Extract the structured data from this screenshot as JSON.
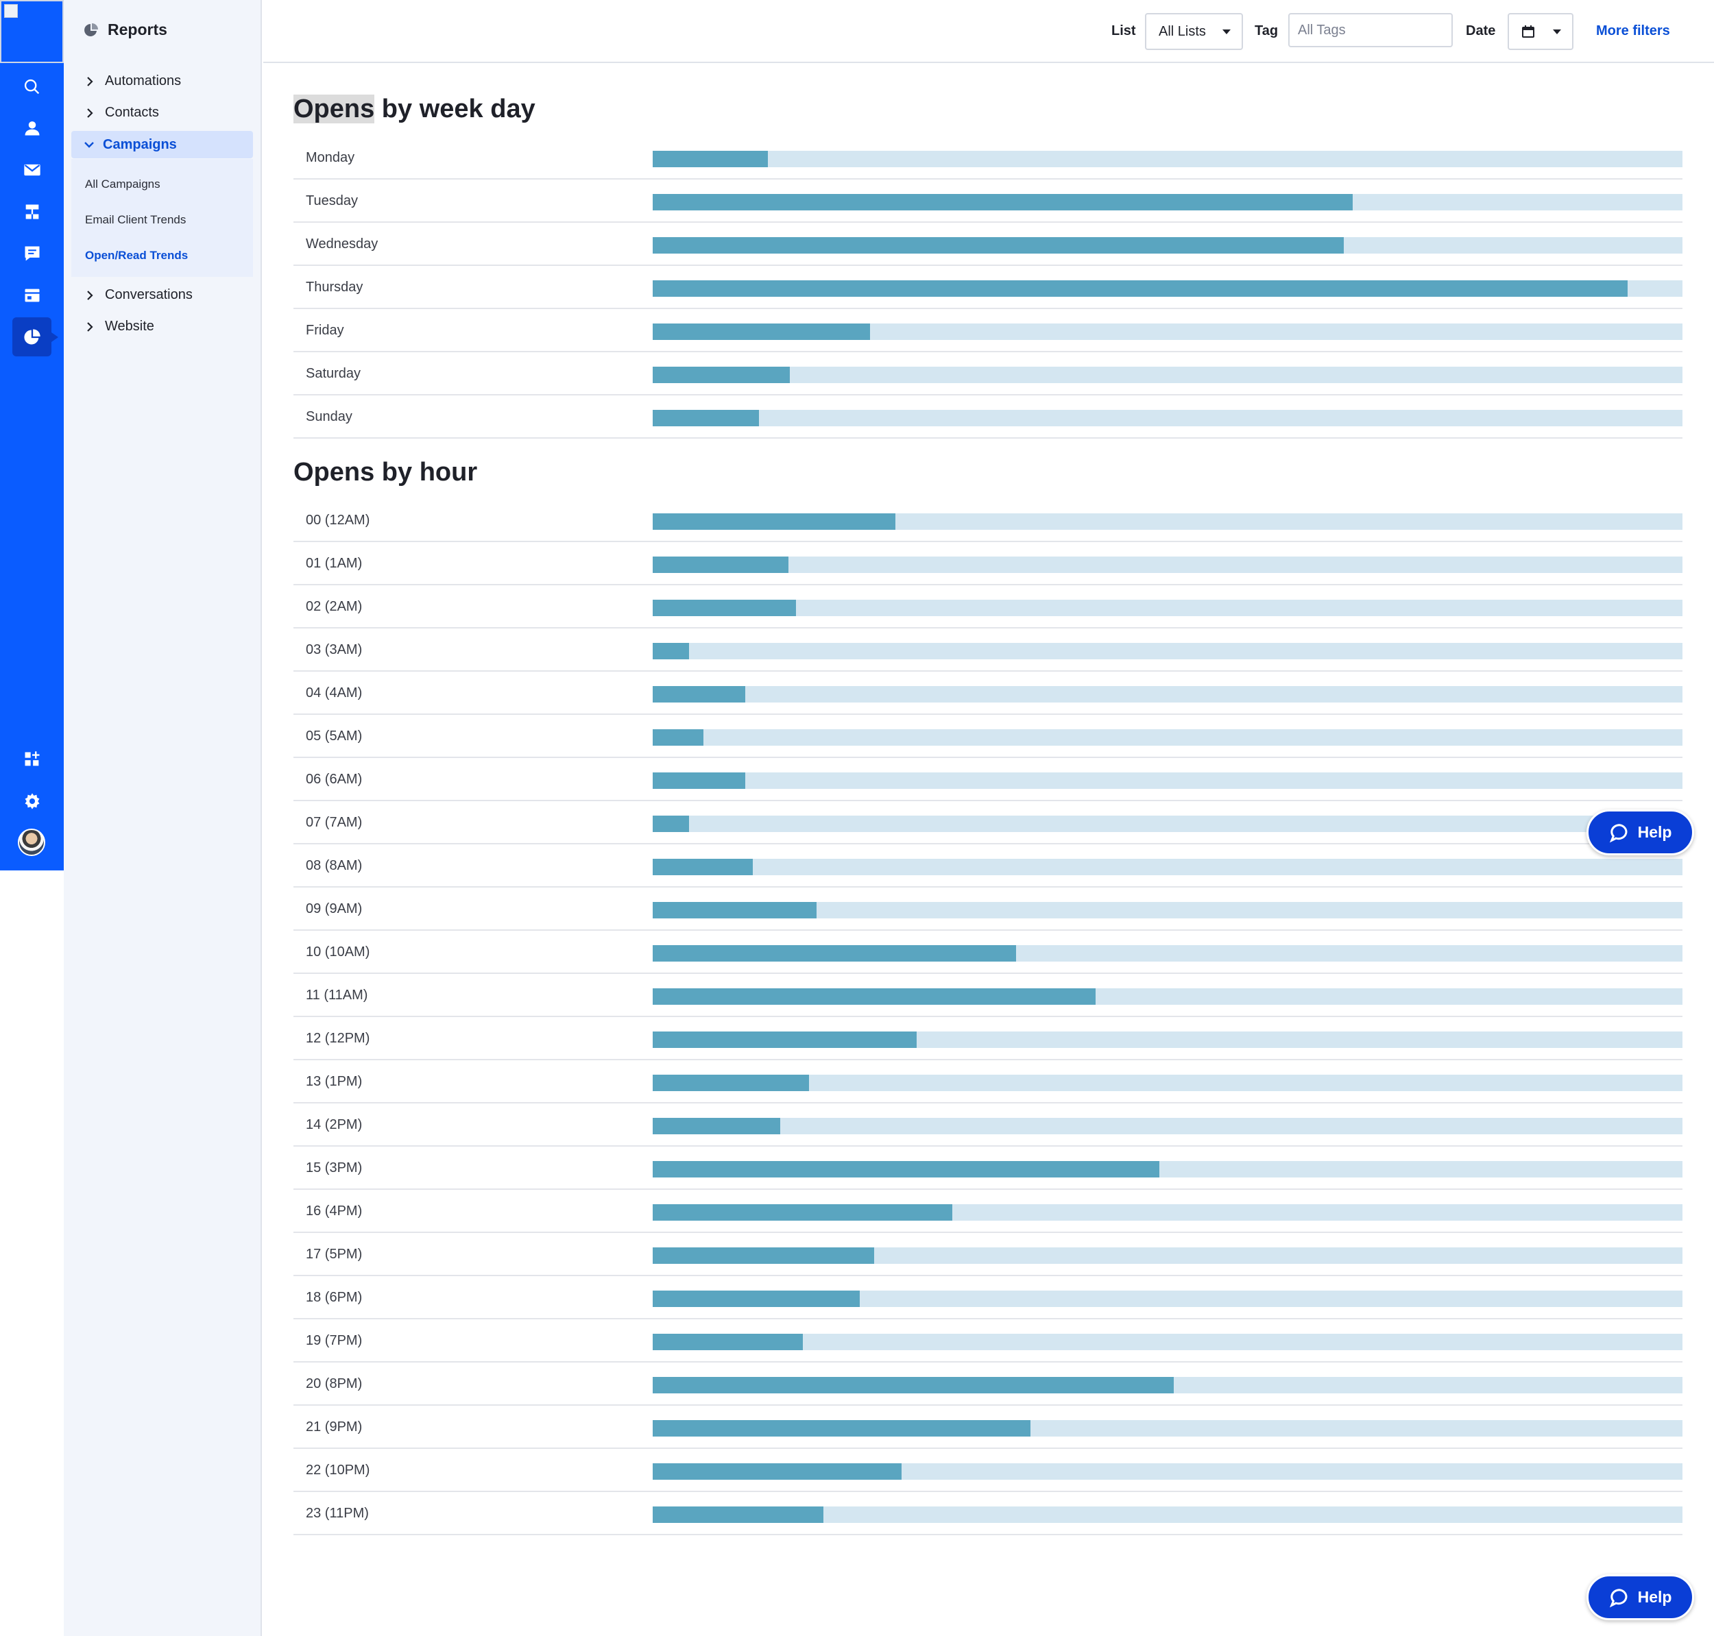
{
  "sidebar": {
    "title": "Reports",
    "sections": [
      {
        "label": "Automations"
      },
      {
        "label": "Contacts"
      },
      {
        "label": "Campaigns"
      },
      {
        "label": "Conversations"
      },
      {
        "label": "Website"
      }
    ],
    "campaign_subitems": [
      {
        "label": "All Campaigns"
      },
      {
        "label": "Email Client Trends"
      },
      {
        "label": "Open/Read Trends"
      }
    ],
    "active_subitem": "Open/Read Trends"
  },
  "rail": {
    "icons": [
      "search-icon",
      "contacts-icon",
      "email-icon",
      "automations-icon",
      "conversations-icon",
      "website-icon",
      "reports-icon",
      "apps-icon",
      "settings-icon",
      "avatar"
    ]
  },
  "filters": {
    "list_label": "List",
    "list_value": "All Lists",
    "tag_label": "Tag",
    "tag_placeholder": "All Tags",
    "date_label": "Date",
    "more_filters": "More filters"
  },
  "help": {
    "label": "Help"
  },
  "colors": {
    "rail": "#0a5cff",
    "bar_fill": "#5aa5c0",
    "bar_track": "#d4e6f1",
    "accent": "#0a4fd6"
  },
  "weekday": {
    "title_highlight": "Opens",
    "title_rest": " by week day"
  },
  "hour": {
    "title": "Opens by hour"
  },
  "chart_data": [
    {
      "type": "bar",
      "orientation": "horizontal",
      "title": "Opens by week day",
      "categories": [
        "Monday",
        "Tuesday",
        "Wednesday",
        "Thursday",
        "Friday",
        "Saturday",
        "Sunday"
      ],
      "values": [
        11.2,
        68.0,
        67.1,
        94.7,
        21.1,
        13.3,
        10.3
      ],
      "xlim": [
        0,
        100
      ],
      "unit": "relative share of track"
    },
    {
      "type": "bar",
      "orientation": "horizontal",
      "title": "Opens by hour",
      "categories": [
        "00 (12AM)",
        "01 (1AM)",
        "02 (2AM)",
        "03 (3AM)",
        "04 (4AM)",
        "05 (5AM)",
        "06 (6AM)",
        "07 (7AM)",
        "08 (8AM)",
        "09 (9AM)",
        "10 (10AM)",
        "11 (11AM)",
        "12 (12PM)",
        "13 (1PM)",
        "14 (2PM)",
        "15 (3PM)",
        "16 (4PM)",
        "17 (5PM)",
        "18 (6PM)",
        "19 (7PM)",
        "20 (8PM)",
        "21 (9PM)",
        "22 (10PM)",
        "23 (11PM)"
      ],
      "values": [
        23.6,
        13.2,
        13.9,
        3.5,
        9.0,
        4.9,
        9.0,
        3.5,
        9.7,
        15.9,
        35.3,
        43.0,
        25.6,
        15.2,
        12.4,
        49.2,
        29.1,
        21.5,
        20.1,
        14.6,
        50.6,
        36.7,
        24.2,
        16.6
      ],
      "xlim": [
        0,
        100
      ],
      "unit": "relative share of track"
    }
  ]
}
